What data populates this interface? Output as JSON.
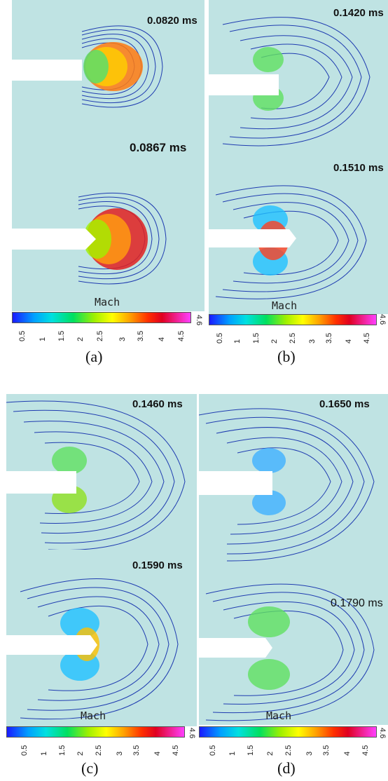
{
  "panels": [
    {
      "id": "a-top",
      "time": "0.0820 ms"
    },
    {
      "id": "a-bottom",
      "time": "0.0867 ms"
    },
    {
      "id": "b-top",
      "time": "0.1420 ms"
    },
    {
      "id": "b-bottom",
      "time": "0.1510 ms"
    },
    {
      "id": "c-top",
      "time": "0.1460 ms"
    },
    {
      "id": "c-bottom",
      "time": "0.1590 ms"
    },
    {
      "id": "d-top",
      "time": "0.1650 ms"
    },
    {
      "id": "d-bottom",
      "time": "0.1790 ms"
    }
  ],
  "colorbar": {
    "label": "Mach",
    "ticks": [
      "0.5",
      "1",
      "1.5",
      "2",
      "2.5",
      "3",
      "3.5",
      "4",
      "4.5"
    ],
    "max": "4.6"
  },
  "captions": [
    "(a)",
    "(b)",
    "(c)",
    "(d)"
  ]
}
